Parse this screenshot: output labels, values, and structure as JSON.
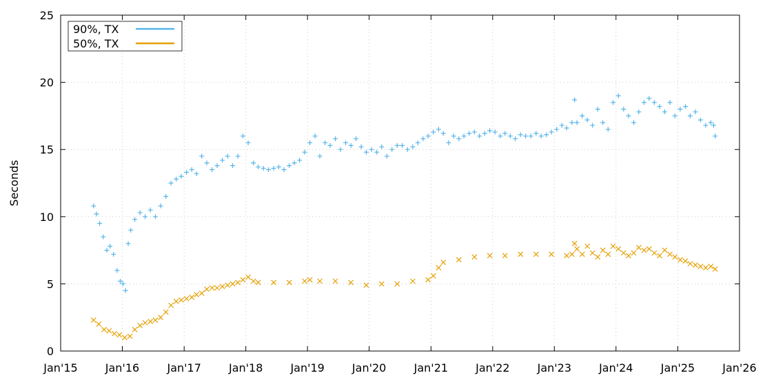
{
  "chart_data": {
    "type": "scatter",
    "title": "",
    "xlabel": "",
    "ylabel": "Seconds",
    "x_type": "date",
    "xlim": [
      "2015-01-01",
      "2026-01-01"
    ],
    "ylim": [
      0,
      25
    ],
    "y_ticks": [
      0,
      5,
      10,
      15,
      20,
      25
    ],
    "x_ticks": [
      {
        "date": "2015-01-01",
        "label": "Jan'15"
      },
      {
        "date": "2016-01-01",
        "label": "Jan'16"
      },
      {
        "date": "2017-01-01",
        "label": "Jan'17"
      },
      {
        "date": "2018-01-01",
        "label": "Jan'18"
      },
      {
        "date": "2019-01-01",
        "label": "Jan'19"
      },
      {
        "date": "2020-01-01",
        "label": "Jan'20"
      },
      {
        "date": "2021-01-01",
        "label": "Jan'21"
      },
      {
        "date": "2022-01-01",
        "label": "Jan'22"
      },
      {
        "date": "2023-01-01",
        "label": "Jan'23"
      },
      {
        "date": "2024-01-01",
        "label": "Jan'24"
      },
      {
        "date": "2025-01-01",
        "label": "Jan'25"
      },
      {
        "date": "2026-01-01",
        "label": "Jan'26"
      }
    ],
    "grid": true,
    "legend": "top-left",
    "series": [
      {
        "name": "90%, TX",
        "color": "#56b4e9",
        "marker": "plus",
        "x": [
          "2015-07-15",
          "2015-08-01",
          "2015-08-20",
          "2015-09-10",
          "2015-10-01",
          "2015-10-20",
          "2015-11-10",
          "2015-12-01",
          "2015-12-20",
          "2016-01-05",
          "2016-01-20",
          "2016-02-05",
          "2016-02-20",
          "2016-03-15",
          "2016-04-15",
          "2016-05-15",
          "2016-06-15",
          "2016-07-15",
          "2016-08-15",
          "2016-09-15",
          "2016-10-15",
          "2016-11-15",
          "2016-12-15",
          "2017-01-15",
          "2017-02-15",
          "2017-03-15",
          "2017-04-15",
          "2017-05-15",
          "2017-06-15",
          "2017-07-15",
          "2017-08-15",
          "2017-09-15",
          "2017-10-15",
          "2017-11-15",
          "2017-12-15",
          "2018-01-15",
          "2018-02-15",
          "2018-03-15",
          "2018-04-15",
          "2018-05-15",
          "2018-06-15",
          "2018-07-15",
          "2018-08-15",
          "2018-09-15",
          "2018-10-15",
          "2018-11-15",
          "2018-12-15",
          "2019-01-15",
          "2019-02-15",
          "2019-03-15",
          "2019-04-15",
          "2019-05-15",
          "2019-06-15",
          "2019-07-15",
          "2019-08-15",
          "2019-09-15",
          "2019-10-15",
          "2019-11-15",
          "2019-12-15",
          "2020-01-15",
          "2020-02-15",
          "2020-03-15",
          "2020-04-15",
          "2020-05-15",
          "2020-06-15",
          "2020-07-15",
          "2020-08-15",
          "2020-09-15",
          "2020-10-15",
          "2020-11-15",
          "2020-12-15",
          "2021-01-15",
          "2021-02-15",
          "2021-03-15",
          "2021-04-15",
          "2021-05-15",
          "2021-06-15",
          "2021-07-15",
          "2021-08-15",
          "2021-09-15",
          "2021-10-15",
          "2021-11-15",
          "2021-12-15",
          "2022-01-15",
          "2022-02-15",
          "2022-03-15",
          "2022-04-15",
          "2022-05-15",
          "2022-06-15",
          "2022-07-15",
          "2022-08-15",
          "2022-09-15",
          "2022-10-15",
          "2022-11-15",
          "2022-12-15",
          "2023-01-15",
          "2023-02-15",
          "2023-03-15",
          "2023-04-15",
          "2023-05-01",
          "2023-05-15",
          "2023-06-15",
          "2023-07-15",
          "2023-08-15",
          "2023-09-15",
          "2023-10-15",
          "2023-11-15",
          "2023-12-15",
          "2024-01-15",
          "2024-02-15",
          "2024-03-15",
          "2024-04-15",
          "2024-05-15",
          "2024-06-15",
          "2024-07-15",
          "2024-08-15",
          "2024-09-15",
          "2024-10-15",
          "2024-11-15",
          "2024-12-15",
          "2025-01-15",
          "2025-02-15",
          "2025-03-15",
          "2025-04-15",
          "2025-05-15",
          "2025-06-15",
          "2025-07-15",
          "2025-08-01",
          "2025-08-10"
        ],
        "y": [
          10.8,
          10.2,
          9.5,
          8.5,
          7.5,
          7.8,
          7.2,
          6.0,
          5.2,
          5.0,
          4.5,
          8.0,
          9.0,
          9.8,
          10.3,
          10.0,
          10.5,
          10.0,
          10.8,
          11.5,
          12.5,
          12.8,
          13.0,
          13.3,
          13.5,
          13.2,
          14.5,
          14.0,
          13.5,
          13.8,
          14.2,
          14.5,
          13.8,
          14.5,
          16.0,
          15.5,
          14.0,
          13.7,
          13.6,
          13.5,
          13.6,
          13.7,
          13.5,
          13.8,
          14.0,
          14.2,
          14.8,
          15.5,
          16.0,
          14.5,
          15.5,
          15.3,
          15.8,
          15.0,
          15.5,
          15.3,
          15.8,
          15.2,
          14.8,
          15.0,
          14.8,
          15.2,
          14.5,
          15.0,
          15.3,
          15.3,
          15.0,
          15.2,
          15.5,
          15.8,
          16.0,
          16.3,
          16.5,
          16.2,
          15.5,
          16.0,
          15.8,
          16.0,
          16.2,
          16.3,
          16.0,
          16.2,
          16.4,
          16.3,
          16.0,
          16.2,
          16.0,
          15.8,
          16.1,
          16.0,
          16.0,
          16.2,
          16.0,
          16.1,
          16.3,
          16.5,
          16.8,
          16.6,
          17.0,
          18.7,
          17.0,
          17.5,
          17.2,
          16.8,
          18.0,
          17.0,
          16.5,
          18.5,
          19.0,
          18.0,
          17.5,
          17.0,
          17.8,
          18.5,
          18.8,
          18.5,
          18.2,
          17.8,
          18.5,
          17.5,
          18.0,
          18.2,
          17.5,
          17.8,
          17.2,
          16.8,
          17.0,
          16.8,
          16.0
        ]
      },
      {
        "name": "50%, TX",
        "color": "#e69f00",
        "marker": "cross",
        "x": [
          "2015-07-15",
          "2015-08-15",
          "2015-09-15",
          "2015-10-15",
          "2015-11-15",
          "2015-12-15",
          "2016-01-15",
          "2016-02-15",
          "2016-03-15",
          "2016-04-15",
          "2016-05-15",
          "2016-06-15",
          "2016-07-15",
          "2016-08-15",
          "2016-09-15",
          "2016-10-15",
          "2016-11-15",
          "2016-12-15",
          "2017-01-15",
          "2017-02-15",
          "2017-03-15",
          "2017-04-15",
          "2017-05-15",
          "2017-06-15",
          "2017-07-15",
          "2017-08-15",
          "2017-09-15",
          "2017-10-15",
          "2017-11-15",
          "2017-12-15",
          "2018-01-15",
          "2018-02-15",
          "2018-03-15",
          "2018-06-15",
          "2018-09-15",
          "2018-12-15",
          "2019-01-15",
          "2019-03-15",
          "2019-06-15",
          "2019-09-15",
          "2019-12-15",
          "2020-03-15",
          "2020-06-15",
          "2020-09-15",
          "2020-12-15",
          "2021-01-15",
          "2021-02-15",
          "2021-03-15",
          "2021-06-15",
          "2021-09-15",
          "2021-12-15",
          "2022-03-15",
          "2022-06-15",
          "2022-09-15",
          "2022-12-15",
          "2023-03-15",
          "2023-04-15",
          "2023-05-01",
          "2023-05-15",
          "2023-06-15",
          "2023-07-15",
          "2023-08-15",
          "2023-09-15",
          "2023-10-15",
          "2023-11-15",
          "2023-12-15",
          "2024-01-15",
          "2024-02-15",
          "2024-03-15",
          "2024-04-15",
          "2024-05-15",
          "2024-06-15",
          "2024-07-15",
          "2024-08-15",
          "2024-09-15",
          "2024-10-15",
          "2024-11-15",
          "2024-12-15",
          "2025-01-15",
          "2025-02-15",
          "2025-03-15",
          "2025-04-15",
          "2025-05-15",
          "2025-06-15",
          "2025-07-15",
          "2025-08-10"
        ],
        "y": [
          2.3,
          2.0,
          1.6,
          1.5,
          1.3,
          1.2,
          1.0,
          1.1,
          1.6,
          1.9,
          2.1,
          2.2,
          2.3,
          2.5,
          2.9,
          3.4,
          3.7,
          3.8,
          3.9,
          4.0,
          4.2,
          4.3,
          4.6,
          4.7,
          4.7,
          4.8,
          4.9,
          5.0,
          5.1,
          5.3,
          5.5,
          5.2,
          5.1,
          5.1,
          5.1,
          5.2,
          5.3,
          5.2,
          5.2,
          5.1,
          4.9,
          5.0,
          5.0,
          5.2,
          5.3,
          5.6,
          6.2,
          6.6,
          6.8,
          7.0,
          7.1,
          7.1,
          7.2,
          7.2,
          7.2,
          7.1,
          7.2,
          8.0,
          7.6,
          7.2,
          7.8,
          7.3,
          7.0,
          7.5,
          7.2,
          7.8,
          7.6,
          7.3,
          7.1,
          7.3,
          7.7,
          7.5,
          7.6,
          7.3,
          7.1,
          7.5,
          7.2,
          7.0,
          6.8,
          6.7,
          6.5,
          6.4,
          6.3,
          6.2,
          6.3,
          6.1
        ]
      }
    ]
  }
}
